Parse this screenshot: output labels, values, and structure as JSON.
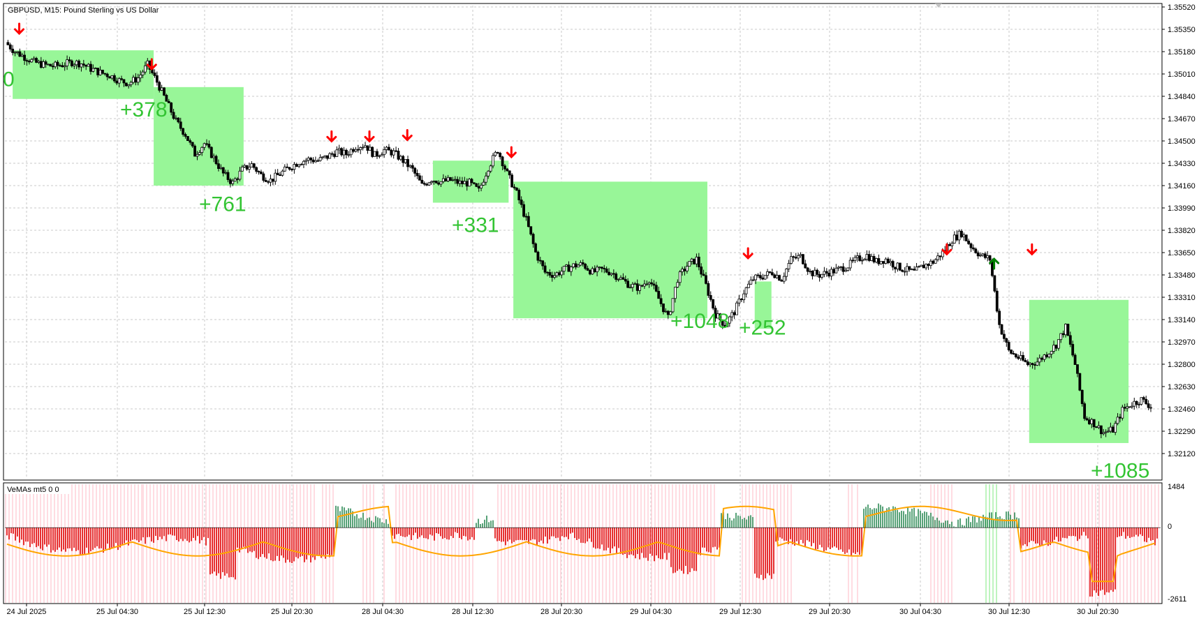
{
  "chart_data": {
    "type": "candlestick",
    "symbol_title": "GBPUSD, M15:  Pound Sterling vs US Dollar",
    "price_axis_labels": [
      "1.35520",
      "1.35350",
      "1.35180",
      "1.35010",
      "1.34840",
      "1.34670",
      "1.34500",
      "1.34330",
      "1.34160",
      "1.33990",
      "1.33820",
      "1.33650",
      "1.33480",
      "1.33310",
      "1.33140",
      "1.32970",
      "1.32800",
      "1.32630",
      "1.32460",
      "1.32290",
      "1.32120"
    ],
    "ylim": [
      1.3212,
      1.3552
    ],
    "time_axis_labels": [
      "24 Jul 2025",
      "25 Jul 04:30",
      "25 Jul 12:30",
      "25 Jul 20:30",
      "28 Jul 04:30",
      "28 Jul 12:30",
      "28 Jul 20:30",
      "29 Jul 04:30",
      "29 Jul 12:30",
      "29 Jul 20:30",
      "30 Jul 04:30",
      "30 Jul 12:30",
      "30 Jul 20:30"
    ],
    "close_path": [
      [
        0,
        1.3525
      ],
      [
        1,
        1.3518
      ],
      [
        2,
        1.3514
      ],
      [
        3,
        1.351
      ],
      [
        4,
        1.3508
      ],
      [
        5,
        1.3507
      ],
      [
        6,
        1.3508
      ],
      [
        7,
        1.351
      ],
      [
        8,
        1.3509
      ],
      [
        9,
        1.3505
      ],
      [
        10,
        1.3502
      ],
      [
        11,
        1.35
      ],
      [
        12,
        1.3496
      ],
      [
        13,
        1.3494
      ],
      [
        14,
        1.3498
      ],
      [
        15,
        1.3508
      ],
      [
        16,
        1.3495
      ],
      [
        17,
        1.348
      ],
      [
        18,
        1.3465
      ],
      [
        19,
        1.3455
      ],
      [
        20,
        1.344
      ],
      [
        21,
        1.3448
      ],
      [
        22,
        1.3437
      ],
      [
        23,
        1.3425
      ],
      [
        24,
        1.3418
      ],
      [
        25,
        1.3428
      ],
      [
        26,
        1.3432
      ],
      [
        27,
        1.3424
      ],
      [
        28,
        1.342
      ],
      [
        29,
        1.3425
      ],
      [
        30,
        1.343
      ],
      [
        31,
        1.3434
      ],
      [
        32,
        1.3436
      ],
      [
        33,
        1.3435
      ],
      [
        34,
        1.3438
      ],
      [
        35,
        1.3442
      ],
      [
        36,
        1.344
      ],
      [
        37,
        1.3446
      ],
      [
        38,
        1.3447
      ],
      [
        39,
        1.3439
      ],
      [
        40,
        1.3443
      ],
      [
        41,
        1.3441
      ],
      [
        42,
        1.3435
      ],
      [
        43,
        1.3428
      ],
      [
        44,
        1.3416
      ],
      [
        45,
        1.3421
      ],
      [
        46,
        1.3419
      ],
      [
        47,
        1.342
      ],
      [
        48,
        1.3418
      ],
      [
        49,
        1.3418
      ],
      [
        50,
        1.3412
      ],
      [
        51,
        1.343
      ],
      [
        52,
        1.3443
      ],
      [
        53,
        1.3425
      ],
      [
        54,
        1.341
      ],
      [
        55,
        1.339
      ],
      [
        56,
        1.3365
      ],
      [
        57,
        1.335
      ],
      [
        58,
        1.3348
      ],
      [
        59,
        1.3352
      ],
      [
        60,
        1.3355
      ],
      [
        61,
        1.3356
      ],
      [
        62,
        1.335
      ],
      [
        63,
        1.3352
      ],
      [
        64,
        1.335
      ],
      [
        65,
        1.3345
      ],
      [
        66,
        1.334
      ],
      [
        67,
        1.3338
      ],
      [
        68,
        1.3345
      ],
      [
        69,
        1.333
      ],
      [
        70,
        1.3315
      ],
      [
        71,
        1.3345
      ],
      [
        72,
        1.3355
      ],
      [
        73,
        1.336
      ],
      [
        74,
        1.334
      ],
      [
        75,
        1.3318
      ],
      [
        76,
        1.331
      ],
      [
        77,
        1.332
      ],
      [
        78,
        1.3335
      ],
      [
        79,
        1.3345
      ],
      [
        80,
        1.3347
      ],
      [
        81,
        1.335
      ],
      [
        82,
        1.3345
      ],
      [
        83,
        1.336
      ],
      [
        84,
        1.3362
      ],
      [
        85,
        1.335
      ],
      [
        86,
        1.3348
      ],
      [
        87,
        1.335
      ],
      [
        88,
        1.3352
      ],
      [
        89,
        1.3355
      ],
      [
        90,
        1.336
      ],
      [
        91,
        1.3363
      ],
      [
        92,
        1.3358
      ],
      [
        93,
        1.336
      ],
      [
        94,
        1.3355
      ],
      [
        95,
        1.3352
      ],
      [
        96,
        1.335
      ],
      [
        97,
        1.3355
      ],
      [
        98,
        1.3358
      ],
      [
        99,
        1.3365
      ],
      [
        100,
        1.3375
      ],
      [
        101,
        1.338
      ],
      [
        102,
        1.337
      ],
      [
        103,
        1.3363
      ],
      [
        104,
        1.336
      ],
      [
        105,
        1.331
      ],
      [
        106,
        1.329
      ],
      [
        107,
        1.3285
      ],
      [
        108,
        1.328
      ],
      [
        109,
        1.3282
      ],
      [
        110,
        1.3288
      ],
      [
        111,
        1.3295
      ],
      [
        112,
        1.3308
      ],
      [
        113,
        1.328
      ],
      [
        114,
        1.324
      ],
      [
        115,
        1.3235
      ],
      [
        116,
        1.3228
      ],
      [
        117,
        1.323
      ],
      [
        118,
        1.3245
      ],
      [
        119,
        1.325
      ],
      [
        120,
        1.3253
      ],
      [
        121,
        1.3248
      ]
    ],
    "trade_boxes": [
      {
        "x0": 0.6,
        "x1": 15.5,
        "y0": 1.3482,
        "y1": 1.3519,
        "label": "0"
      },
      {
        "x0": 15.5,
        "x1": 25.0,
        "y0": 1.3416,
        "y1": 1.3491,
        "label": "+378"
      },
      {
        "x0": 45.0,
        "x1": 53.0,
        "y0": 1.3403,
        "y1": 1.3435,
        "label": "+331"
      },
      {
        "x0": 53.5,
        "x1": 74.0,
        "y0": 1.3315,
        "y1": 1.3419,
        "label": "+1048"
      },
      {
        "x0": 79.0,
        "x1": 80.0,
        "y0": 1.3307,
        "y1": 1.3343,
        "label": "+252"
      },
      {
        "x0": 108.0,
        "x1": 118.5,
        "y0": 1.322,
        "y1": 1.3329,
        "label": "+1085"
      }
    ],
    "profit_labels": [
      "0",
      "+378",
      "+761",
      "+331",
      "+1048",
      "+252",
      "+1085"
    ],
    "sell_arrow_indices": [
      1,
      15,
      34,
      38,
      42,
      53,
      78,
      99,
      108
    ],
    "buy_arrow_indices": [
      104
    ],
    "indicator": {
      "title": "VeMAs mt5 0 0",
      "axis_labels": [
        "1484",
        "0",
        "-2611"
      ],
      "ylim": [
        -2611,
        1484
      ]
    }
  },
  "colors": {
    "box_fill": "#98f698",
    "profit_text": "#33c433",
    "sell_arrow": "#ff0000",
    "buy_arrow": "#008000",
    "candle": "#000000",
    "grid": "#c8c8c8",
    "hist_neg": "#e00000",
    "hist_pos": "#2e8b57",
    "ma_line": "#ffa500",
    "bg_neg": "#ffd0d8",
    "bg_pos": "#a8f0a8"
  }
}
